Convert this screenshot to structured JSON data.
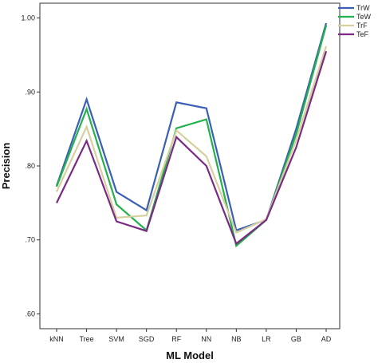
{
  "chart_data": {
    "type": "line",
    "title": "",
    "xlabel": "ML Model",
    "ylabel": "Precision",
    "categories": [
      "kNN",
      "Tree",
      "SVM",
      "SGD",
      "RF",
      "NN",
      "NB",
      "LR",
      "GB",
      "AD"
    ],
    "y_ticks": [
      ".60",
      ".70",
      ".80",
      ".90",
      "1.00"
    ],
    "y_tick_values": [
      0.6,
      0.7,
      0.8,
      0.9,
      1.0
    ],
    "ylim": [
      0.58,
      1.02
    ],
    "grid": false,
    "legend_position": "top-right",
    "series": [
      {
        "name": "TrW",
        "color": "#3a5fb5",
        "values": [
          0.773,
          0.89,
          0.765,
          0.74,
          0.886,
          0.878,
          0.713,
          0.727,
          0.85,
          0.993
        ]
      },
      {
        "name": "TeW",
        "color": "#22b14c",
        "values": [
          0.772,
          0.877,
          0.748,
          0.713,
          0.851,
          0.863,
          0.692,
          0.727,
          0.843,
          0.99
        ]
      },
      {
        "name": "TrF",
        "color": "#d6d0a0",
        "values": [
          0.765,
          0.853,
          0.73,
          0.733,
          0.848,
          0.813,
          0.71,
          0.728,
          0.835,
          0.962
        ]
      },
      {
        "name": "TeF",
        "color": "#7a2a85",
        "values": [
          0.75,
          0.834,
          0.725,
          0.712,
          0.839,
          0.8,
          0.695,
          0.727,
          0.825,
          0.955
        ]
      }
    ]
  }
}
